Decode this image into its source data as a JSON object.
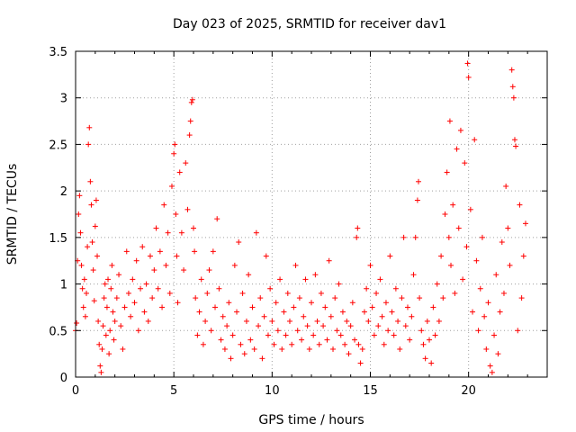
{
  "chart_data": {
    "type": "scatter",
    "title": "Day 023 of 2025, SRMTID for receiver dav1",
    "xlabel": "GPS time / hours",
    "ylabel": "SRMTID / TECUs",
    "xlim": [
      0,
      24
    ],
    "ylim": [
      0,
      3.5
    ],
    "xticks": [
      0,
      5,
      10,
      15,
      20
    ],
    "yticks": [
      0,
      0.5,
      1,
      1.5,
      2,
      2.5,
      3,
      3.5
    ],
    "xtick_labels": [
      "0",
      "5",
      "10",
      "15",
      "20"
    ],
    "ytick_labels": [
      "0",
      "0.5",
      "1",
      "1.5",
      "2",
      "2.5",
      "3",
      "3.5"
    ],
    "grid": true,
    "marker": "+",
    "color": "#ff0000",
    "series": [
      {
        "name": "SRMTID",
        "points": [
          [
            0.0,
            0.5
          ],
          [
            0.05,
            0.58
          ],
          [
            0.1,
            1.25
          ],
          [
            0.15,
            1.75
          ],
          [
            0.2,
            1.95
          ],
          [
            0.25,
            1.55
          ],
          [
            0.3,
            1.2
          ],
          [
            0.35,
            0.95
          ],
          [
            0.4,
            0.75
          ],
          [
            0.45,
            1.05
          ],
          [
            0.5,
            0.65
          ],
          [
            0.55,
            0.9
          ],
          [
            0.6,
            1.4
          ],
          [
            0.65,
            2.5
          ],
          [
            0.7,
            2.68
          ],
          [
            0.75,
            2.1
          ],
          [
            0.8,
            1.85
          ],
          [
            0.85,
            1.45
          ],
          [
            0.9,
            1.15
          ],
          [
            0.95,
            0.82
          ],
          [
            1.0,
            1.62
          ],
          [
            1.05,
            1.9
          ],
          [
            1.1,
            1.3
          ],
          [
            1.15,
            0.6
          ],
          [
            1.2,
            0.35
          ],
          [
            1.25,
            0.12
          ],
          [
            1.3,
            0.05
          ],
          [
            1.35,
            0.3
          ],
          [
            1.4,
            0.55
          ],
          [
            1.45,
            0.85
          ],
          [
            1.5,
            1.0
          ],
          [
            1.55,
            0.45
          ],
          [
            1.6,
            0.75
          ],
          [
            1.65,
            1.05
          ],
          [
            1.7,
            0.25
          ],
          [
            1.75,
            0.5
          ],
          [
            1.8,
            0.95
          ],
          [
            1.85,
            1.2
          ],
          [
            1.9,
            0.7
          ],
          [
            1.95,
            0.4
          ],
          [
            2.0,
            0.6
          ],
          [
            2.1,
            0.85
          ],
          [
            2.2,
            1.1
          ],
          [
            2.3,
            0.55
          ],
          [
            2.4,
            0.3
          ],
          [
            2.5,
            0.75
          ],
          [
            2.6,
            1.35
          ],
          [
            2.7,
            0.9
          ],
          [
            2.8,
            0.65
          ],
          [
            2.9,
            1.05
          ],
          [
            3.0,
            0.8
          ],
          [
            3.1,
            1.25
          ],
          [
            3.2,
            0.5
          ],
          [
            3.3,
            0.95
          ],
          [
            3.4,
            1.4
          ],
          [
            3.5,
            0.7
          ],
          [
            3.6,
            1.0
          ],
          [
            3.7,
            0.6
          ],
          [
            3.8,
            1.3
          ],
          [
            3.9,
            0.85
          ],
          [
            4.0,
            1.15
          ],
          [
            4.1,
            1.6
          ],
          [
            4.2,
            0.95
          ],
          [
            4.3,
            1.35
          ],
          [
            4.4,
            0.75
          ],
          [
            4.5,
            1.85
          ],
          [
            4.6,
            1.2
          ],
          [
            4.7,
            1.55
          ],
          [
            4.8,
            0.9
          ],
          [
            4.9,
            2.05
          ],
          [
            5.0,
            2.4
          ],
          [
            5.05,
            2.5
          ],
          [
            5.1,
            1.75
          ],
          [
            5.15,
            1.3
          ],
          [
            5.2,
            0.8
          ],
          [
            5.3,
            2.2
          ],
          [
            5.4,
            1.55
          ],
          [
            5.5,
            1.15
          ],
          [
            5.6,
            2.3
          ],
          [
            5.7,
            1.8
          ],
          [
            5.8,
            2.6
          ],
          [
            5.85,
            2.75
          ],
          [
            5.9,
            2.95
          ],
          [
            5.95,
            2.98
          ],
          [
            6.0,
            1.6
          ],
          [
            6.05,
            1.35
          ],
          [
            6.1,
            0.85
          ],
          [
            6.2,
            0.45
          ],
          [
            6.3,
            0.7
          ],
          [
            6.4,
            1.05
          ],
          [
            6.5,
            0.35
          ],
          [
            6.6,
            0.6
          ],
          [
            6.7,
            0.9
          ],
          [
            6.8,
            1.15
          ],
          [
            6.9,
            0.5
          ],
          [
            7.0,
            1.35
          ],
          [
            7.1,
            0.75
          ],
          [
            7.2,
            1.7
          ],
          [
            7.3,
            0.95
          ],
          [
            7.4,
            0.4
          ],
          [
            7.5,
            0.65
          ],
          [
            7.6,
            0.3
          ],
          [
            7.7,
            0.55
          ],
          [
            7.8,
            0.8
          ],
          [
            7.9,
            0.2
          ],
          [
            8.0,
            0.45
          ],
          [
            8.1,
            1.2
          ],
          [
            8.2,
            0.7
          ],
          [
            8.3,
            1.45
          ],
          [
            8.4,
            0.35
          ],
          [
            8.5,
            0.9
          ],
          [
            8.6,
            0.25
          ],
          [
            8.7,
            0.6
          ],
          [
            8.8,
            1.1
          ],
          [
            8.9,
            0.4
          ],
          [
            9.0,
            0.75
          ],
          [
            9.1,
            0.3
          ],
          [
            9.2,
            1.55
          ],
          [
            9.3,
            0.55
          ],
          [
            9.4,
            0.85
          ],
          [
            9.5,
            0.2
          ],
          [
            9.6,
            0.65
          ],
          [
            9.7,
            1.3
          ],
          [
            9.8,
            0.45
          ],
          [
            9.9,
            0.95
          ],
          [
            10.0,
            0.6
          ],
          [
            10.1,
            0.35
          ],
          [
            10.2,
            0.8
          ],
          [
            10.3,
            0.5
          ],
          [
            10.4,
            1.05
          ],
          [
            10.5,
            0.3
          ],
          [
            10.6,
            0.7
          ],
          [
            10.7,
            0.45
          ],
          [
            10.8,
            0.9
          ],
          [
            10.9,
            0.6
          ],
          [
            11.0,
            0.35
          ],
          [
            11.1,
            0.75
          ],
          [
            11.2,
            1.2
          ],
          [
            11.3,
            0.5
          ],
          [
            11.4,
            0.85
          ],
          [
            11.5,
            0.4
          ],
          [
            11.6,
            0.65
          ],
          [
            11.7,
            1.05
          ],
          [
            11.8,
            0.55
          ],
          [
            11.9,
            0.3
          ],
          [
            12.0,
            0.8
          ],
          [
            12.1,
            0.45
          ],
          [
            12.2,
            1.1
          ],
          [
            12.3,
            0.6
          ],
          [
            12.4,
            0.35
          ],
          [
            12.5,
            0.9
          ],
          [
            12.6,
            0.55
          ],
          [
            12.7,
            0.75
          ],
          [
            12.8,
            0.4
          ],
          [
            12.9,
            1.25
          ],
          [
            13.0,
            0.65
          ],
          [
            13.1,
            0.3
          ],
          [
            13.2,
            0.85
          ],
          [
            13.3,
            0.5
          ],
          [
            13.4,
            1.0
          ],
          [
            13.5,
            0.45
          ],
          [
            13.6,
            0.7
          ],
          [
            13.7,
            0.35
          ],
          [
            13.8,
            0.6
          ],
          [
            13.9,
            0.25
          ],
          [
            14.0,
            0.55
          ],
          [
            14.1,
            0.8
          ],
          [
            14.2,
            0.4
          ],
          [
            14.3,
            1.5
          ],
          [
            14.35,
            1.6
          ],
          [
            14.4,
            0.35
          ],
          [
            14.5,
            0.15
          ],
          [
            14.6,
            0.3
          ],
          [
            14.7,
            0.7
          ],
          [
            14.8,
            0.95
          ],
          [
            14.9,
            0.6
          ],
          [
            15.0,
            1.2
          ],
          [
            15.1,
            0.75
          ],
          [
            15.2,
            0.45
          ],
          [
            15.3,
            0.9
          ],
          [
            15.4,
            0.55
          ],
          [
            15.5,
            1.05
          ],
          [
            15.6,
            0.65
          ],
          [
            15.7,
            0.35
          ],
          [
            15.8,
            0.8
          ],
          [
            15.9,
            0.5
          ],
          [
            16.0,
            1.3
          ],
          [
            16.1,
            0.7
          ],
          [
            16.2,
            0.45
          ],
          [
            16.3,
            0.95
          ],
          [
            16.4,
            0.6
          ],
          [
            16.5,
            0.3
          ],
          [
            16.6,
            0.85
          ],
          [
            16.7,
            1.5
          ],
          [
            16.8,
            0.55
          ],
          [
            16.9,
            0.75
          ],
          [
            17.0,
            0.4
          ],
          [
            17.1,
            0.65
          ],
          [
            17.2,
            1.1
          ],
          [
            17.3,
            1.5
          ],
          [
            17.4,
            1.9
          ],
          [
            17.45,
            2.1
          ],
          [
            17.5,
            0.85
          ],
          [
            17.6,
            0.5
          ],
          [
            17.7,
            0.35
          ],
          [
            17.8,
            0.2
          ],
          [
            17.9,
            0.6
          ],
          [
            18.0,
            0.4
          ],
          [
            18.1,
            0.15
          ],
          [
            18.2,
            0.75
          ],
          [
            18.3,
            0.45
          ],
          [
            18.4,
            1.0
          ],
          [
            18.5,
            0.6
          ],
          [
            18.6,
            1.3
          ],
          [
            18.7,
            0.85
          ],
          [
            18.8,
            1.75
          ],
          [
            18.9,
            2.2
          ],
          [
            19.0,
            1.5
          ],
          [
            19.05,
            2.75
          ],
          [
            19.1,
            1.2
          ],
          [
            19.2,
            1.85
          ],
          [
            19.3,
            0.9
          ],
          [
            19.4,
            2.45
          ],
          [
            19.5,
            1.6
          ],
          [
            19.6,
            2.65
          ],
          [
            19.7,
            1.05
          ],
          [
            19.8,
            2.3
          ],
          [
            19.9,
            1.4
          ],
          [
            19.95,
            3.37
          ],
          [
            20.0,
            3.22
          ],
          [
            20.1,
            1.8
          ],
          [
            20.2,
            0.7
          ],
          [
            20.3,
            2.55
          ],
          [
            20.4,
            1.25
          ],
          [
            20.5,
            0.5
          ],
          [
            20.6,
            0.95
          ],
          [
            20.7,
            1.5
          ],
          [
            20.8,
            0.65
          ],
          [
            20.9,
            0.3
          ],
          [
            21.0,
            0.8
          ],
          [
            21.1,
            0.12
          ],
          [
            21.2,
            0.05
          ],
          [
            21.3,
            0.45
          ],
          [
            21.4,
            1.1
          ],
          [
            21.5,
            0.25
          ],
          [
            21.6,
            0.7
          ],
          [
            21.7,
            1.45
          ],
          [
            21.8,
            0.9
          ],
          [
            21.9,
            2.05
          ],
          [
            22.0,
            1.6
          ],
          [
            22.1,
            1.2
          ],
          [
            22.2,
            3.3
          ],
          [
            22.25,
            3.12
          ],
          [
            22.3,
            3.0
          ],
          [
            22.35,
            2.55
          ],
          [
            22.4,
            2.48
          ],
          [
            22.5,
            0.5
          ],
          [
            22.6,
            1.85
          ],
          [
            22.7,
            0.85
          ],
          [
            22.8,
            1.3
          ],
          [
            22.9,
            1.65
          ]
        ]
      }
    ]
  }
}
